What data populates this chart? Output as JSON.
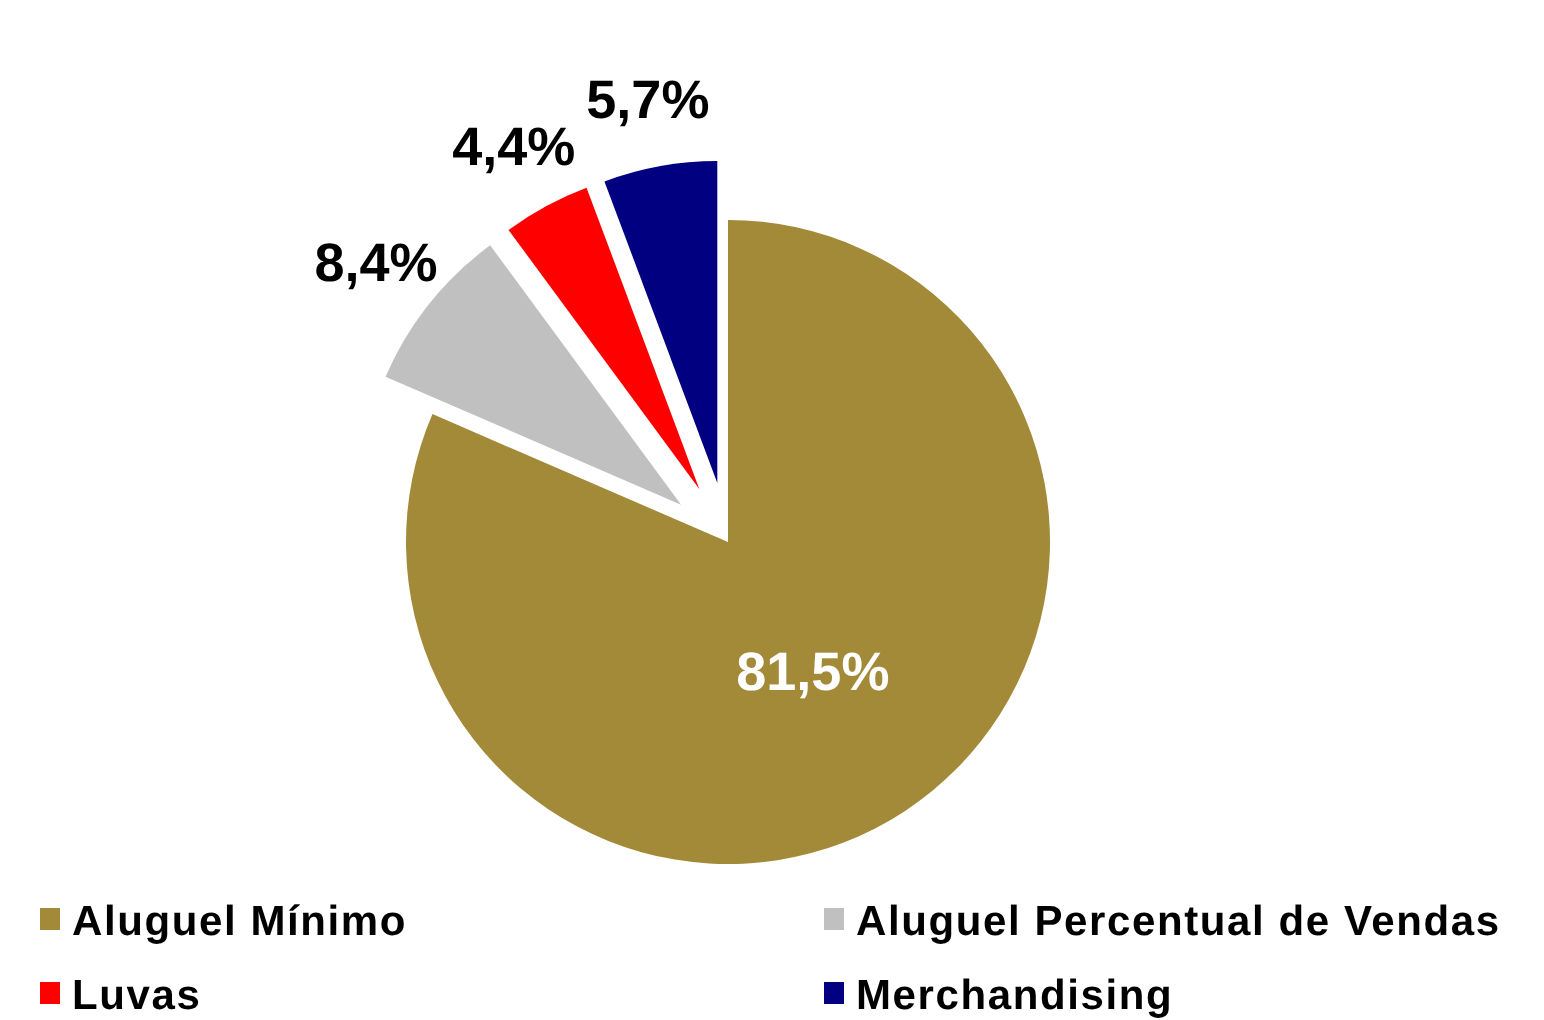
{
  "chart_data": {
    "type": "pie",
    "categories": [
      "Aluguel Mínimo",
      "Aluguel Percentual de Vendas",
      "Luvas",
      "Merchandising"
    ],
    "values": [
      81.5,
      8.4,
      4.4,
      5.7
    ],
    "colors": [
      "#a38a38",
      "#c0c0c0",
      "#ff0000",
      "#000080"
    ],
    "value_labels": [
      "81,5%",
      "8,4%",
      "4,4%",
      "5,7%"
    ],
    "legend": "bottom"
  }
}
